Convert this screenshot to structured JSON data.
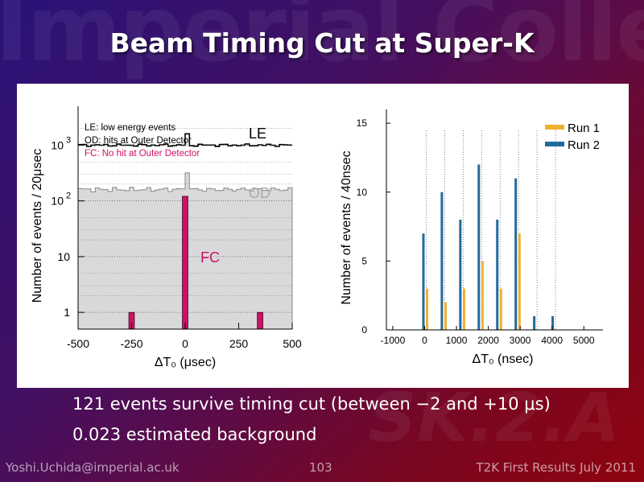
{
  "slide": {
    "title": "Beam Timing Cut at Super-K",
    "watermark": "Imperial College",
    "bullets": [
      "121 events survive timing cut (between −2 and +10 μs)",
      "0.023 estimated background"
    ],
    "footer_left": "Yoshi.Uchida@imperial.ac.uk",
    "footer_center": "103",
    "footer_right": "T2K First Results July 2011"
  },
  "colors": {
    "fc": "#cc1166",
    "od_fill": "#d9d9d9",
    "run1": "#f0b030",
    "run2": "#1f6b9c"
  },
  "chart_data": [
    {
      "type": "bar",
      "xlabel": "ΔT₀ (μsec)",
      "ylabel": "Number of events / 20μsec",
      "xlim": [
        -500,
        500
      ],
      "log_scale_y": true,
      "ylim": [
        0.5,
        5000
      ],
      "x_ticks": [
        "-500",
        "-250",
        "0",
        "250",
        "500"
      ],
      "y_ticks": [
        "1",
        "10",
        "10 2",
        "10 3"
      ],
      "annotations": [
        {
          "text": "LE: low energy events"
        },
        {
          "text": "OD: hits at Outer Detector"
        },
        {
          "text": "FC:  No hit at Outer Detector"
        }
      ],
      "series_labels": [
        "LE",
        "OD",
        "FC"
      ],
      "series": [
        {
          "name": "LE",
          "level": 1000,
          "peak_at_0": 1600
        },
        {
          "name": "OD",
          "level": 160,
          "peak_at_0": 320
        },
        {
          "name": "FC",
          "x": [
            -250,
            0,
            350
          ],
          "values": [
            1,
            121,
            1
          ]
        }
      ]
    },
    {
      "type": "bar",
      "xlabel": "ΔT₀  (nsec)",
      "ylabel": "Number of events / 40nsec",
      "xlim": [
        -1200,
        5600
      ],
      "ylim": [
        0,
        16
      ],
      "x_ticks": [
        "-1000",
        "0",
        "1000",
        "2000",
        "3000",
        "4000",
        "5000"
      ],
      "y_ticks": [
        "0",
        "5",
        "10",
        "15"
      ],
      "legend": "top-right",
      "series": [
        {
          "name": "Run 1",
          "x": [
            40,
            620,
            1200,
            1780,
            2360,
            2940
          ],
          "values": [
            3,
            2,
            3,
            5,
            3,
            7
          ]
        },
        {
          "name": "Run 2",
          "x": [
            0,
            580,
            1160,
            1740,
            2320,
            2900,
            3480,
            4060
          ],
          "values": [
            7,
            10,
            8,
            12,
            8,
            11,
            1,
            1
          ]
        }
      ]
    }
  ]
}
